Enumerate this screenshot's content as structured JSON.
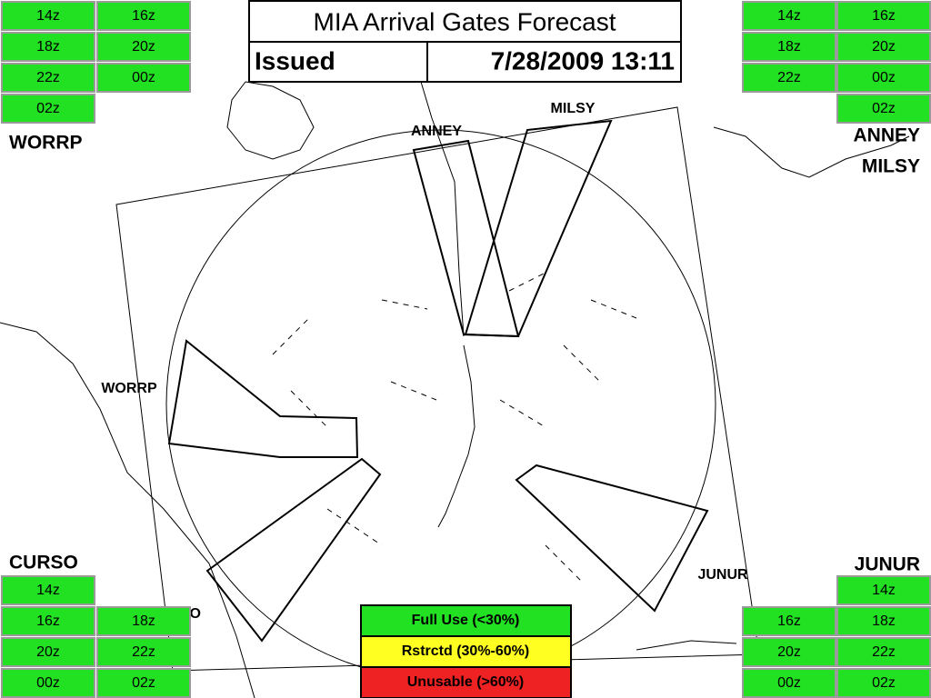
{
  "header": {
    "title": "MIA Arrival Gates Forecast",
    "issued_label": "Issued",
    "issued_time": "7/28/2009 13:11"
  },
  "panels": [
    {
      "label": [
        "WORRP"
      ],
      "rows": [
        [
          "14z",
          "16z"
        ],
        [
          "18z",
          "20z"
        ],
        [
          "22z",
          "00z"
        ],
        [
          "02z",
          null
        ]
      ]
    },
    {
      "label": [
        "ANNEY",
        "MILSY"
      ],
      "rows": [
        [
          "14z",
          "16z"
        ],
        [
          "18z",
          "20z"
        ],
        [
          "22z",
          "00z"
        ],
        [
          null,
          "02z"
        ]
      ]
    },
    {
      "label": [
        "CURSO"
      ],
      "rows": [
        [
          "14z",
          null
        ],
        [
          "16z",
          "18z"
        ],
        [
          "20z",
          "22z"
        ],
        [
          "00z",
          "02z"
        ]
      ]
    },
    {
      "label": [
        "JUNUR"
      ],
      "rows": [
        [
          null,
          "14z"
        ],
        [
          "16z",
          "18z"
        ],
        [
          "20z",
          "22z"
        ],
        [
          "00z",
          "02z"
        ]
      ]
    }
  ],
  "map_labels": [
    "ANNEY",
    "MILSY",
    "WORRP",
    "JUNUR",
    "CURSO"
  ],
  "legend": [
    {
      "label": "Full Use (<30%)",
      "color": "#22e022"
    },
    {
      "label": "Rstrctd (30%-60%)",
      "color": "#ffff22"
    },
    {
      "label": "Unusable (>60%)",
      "color": "#ee2222"
    }
  ]
}
